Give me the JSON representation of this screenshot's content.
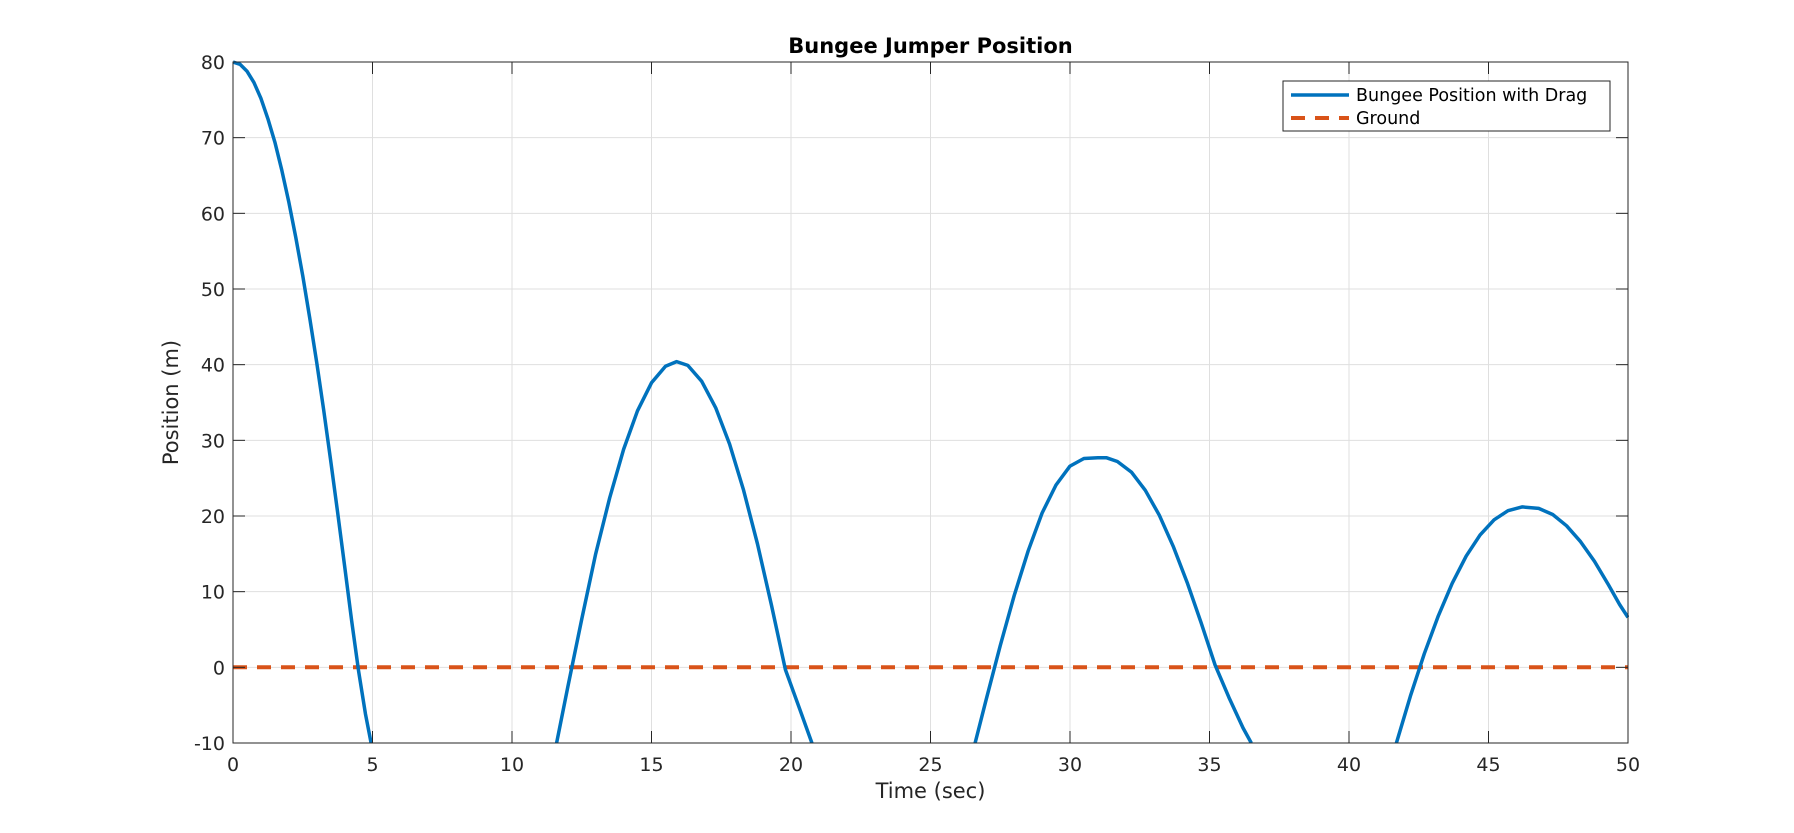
{
  "chart_data": {
    "type": "line",
    "title": "Bungee Jumper Position",
    "xlabel": "Time (sec)",
    "ylabel": "Position (m)",
    "xlim": [
      0,
      50
    ],
    "ylim": [
      -10,
      80
    ],
    "xticks": [
      "0",
      "5",
      "10",
      "15",
      "20",
      "25",
      "30",
      "35",
      "40",
      "45",
      "50"
    ],
    "yticks": [
      "-10",
      "0",
      "10",
      "20",
      "30",
      "40",
      "50",
      "60",
      "70",
      "80"
    ],
    "grid": true,
    "legend_position": "top-right",
    "series": [
      {
        "name": "Bungee Position with Drag",
        "color": "#0072BD",
        "style": "solid",
        "segments": [
          {
            "x": [
              0,
              0.25,
              0.5,
              0.75,
              1.0,
              1.25,
              1.5,
              1.75,
              2.0,
              2.25,
              2.5,
              2.75,
              3.0,
              3.25,
              3.5,
              3.75,
              4.0,
              4.25,
              4.5,
              4.75,
              4.95
            ],
            "y": [
              80,
              79.7,
              78.8,
              77.3,
              75.2,
              72.5,
              69.4,
              65.7,
              61.5,
              56.8,
              51.7,
              46.2,
              40.3,
              34.0,
              27.4,
              20.5,
              13.4,
              6.2,
              -0.5,
              -6.2,
              -10
            ]
          },
          {
            "x": [
              11.6,
              12.0,
              12.5,
              13.0,
              13.5,
              14.0,
              14.5,
              15.0,
              15.5,
              15.9,
              16.3,
              16.8,
              17.3,
              17.8,
              18.3,
              18.8,
              19.3,
              19.8,
              20.3,
              20.75
            ],
            "y": [
              -10,
              -2.6,
              6.4,
              15.0,
              22.4,
              28.8,
              33.9,
              37.6,
              39.8,
              40.4,
              39.9,
              37.8,
              34.3,
              29.5,
              23.4,
              16.3,
              8.2,
              -0.3,
              -5.4,
              -10
            ]
          },
          {
            "x": [
              26.6,
              27.0,
              27.5,
              28.0,
              28.5,
              29.0,
              29.5,
              30.0,
              30.5,
              31.0,
              31.3,
              31.7,
              32.2,
              32.7,
              33.2,
              33.7,
              34.2,
              34.7,
              35.2,
              35.7,
              36.2,
              36.5
            ],
            "y": [
              -10,
              -4.2,
              2.9,
              9.5,
              15.4,
              20.4,
              24.1,
              26.6,
              27.6,
              27.7,
              27.7,
              27.2,
              25.8,
              23.4,
              20.1,
              16.0,
              11.2,
              5.9,
              0.3,
              -4.0,
              -8.0,
              -10
            ]
          },
          {
            "x": [
              41.7,
              42.2,
              42.7,
              43.2,
              43.7,
              44.2,
              44.7,
              45.2,
              45.7,
              46.2,
              46.8,
              47.3,
              47.8,
              48.3,
              48.8,
              49.3,
              49.7,
              50.0
            ],
            "y": [
              -10,
              -3.8,
              1.8,
              6.8,
              11.1,
              14.7,
              17.5,
              19.5,
              20.7,
              21.2,
              21.0,
              20.2,
              18.7,
              16.6,
              14.0,
              10.9,
              8.3,
              6.6
            ]
          }
        ]
      },
      {
        "name": "Ground",
        "color": "#D95319",
        "style": "dashed",
        "segments": [
          {
            "x": [
              0,
              50
            ],
            "y": [
              0,
              0
            ]
          }
        ]
      }
    ]
  }
}
